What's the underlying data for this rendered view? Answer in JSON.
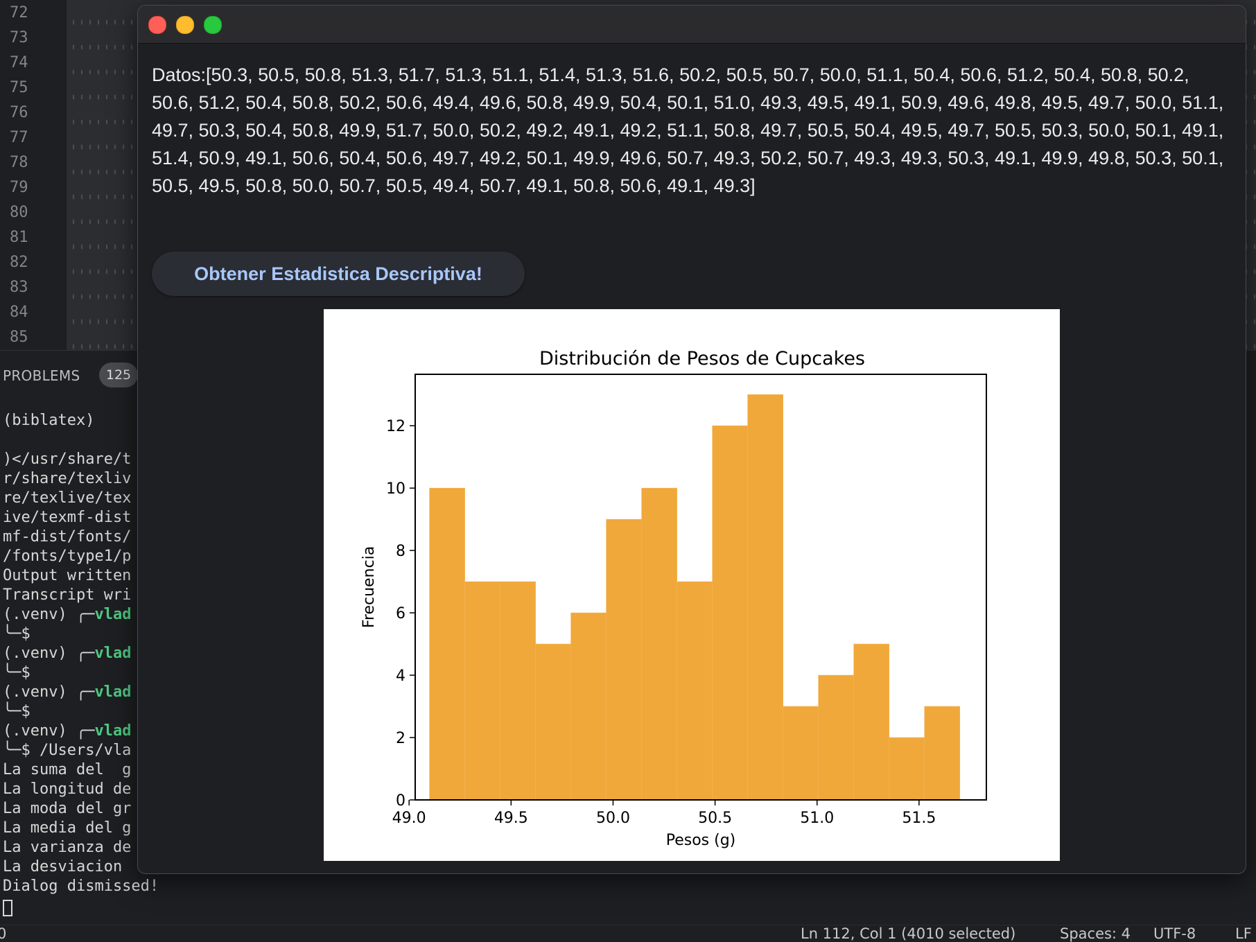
{
  "editor": {
    "line_numbers": [
      "72",
      "73",
      "74",
      "75",
      "76",
      "77",
      "78",
      "79",
      "80",
      "81",
      "82",
      "83",
      "84",
      "85"
    ]
  },
  "panel": {
    "problems_label": "PROBLEMS",
    "problems_count": "125"
  },
  "terminal": {
    "lines": [
      {
        "text": "(biblatex)"
      },
      {
        "text": ""
      },
      {
        "text": ")</usr/share/t"
      },
      {
        "text": "r/share/texliv"
      },
      {
        "text": "re/texlive/tex"
      },
      {
        "text": "ive/texmf-dist"
      },
      {
        "text": "mf-dist/fonts/"
      },
      {
        "text": "/fonts/type1/p"
      },
      {
        "text": "Output written"
      },
      {
        "text": "Transcript wri"
      },
      {
        "text": "(.venv) ╭─",
        "user": "vlad"
      },
      {
        "text": "╰─$"
      },
      {
        "text": "(.venv) ╭─",
        "user": "vlad"
      },
      {
        "text": "╰─$"
      },
      {
        "text": "(.venv) ╭─",
        "user": "vlad"
      },
      {
        "text": "╰─$"
      },
      {
        "text": "(.venv) ╭─",
        "user": "vlad"
      },
      {
        "text": "╰─$ /Users/vla"
      },
      {
        "text": "La suma del  g"
      },
      {
        "text": "La longitud de"
      },
      {
        "text": "La moda del gr"
      },
      {
        "text": "La media del g"
      },
      {
        "text": "La varianza de"
      },
      {
        "text": "La desviacion"
      },
      {
        "text": "Dialog dismissed!"
      }
    ]
  },
  "statusbar": {
    "left": "0",
    "position": "Ln 112, Col 1 (4010 selected)",
    "spaces": "Spaces: 4",
    "encoding": "UTF-8",
    "eol": "LF"
  },
  "dialog": {
    "data_text": "Datos:[50.3, 50.5, 50.8, 51.3, 51.7, 51.3, 51.1, 51.4, 51.3, 51.6, 50.2, 50.5, 50.7, 50.0, 51.1, 50.4, 50.6, 51.2, 50.4, 50.8, 50.2, 50.6, 51.2, 50.4, 50.8, 50.2, 50.6, 49.4, 49.6, 50.8, 49.9, 50.4, 50.1, 51.0, 49.3, 49.5, 49.1, 50.9, 49.6, 49.8, 49.5, 49.7, 50.0, 51.1, 49.7, 50.3, 50.4, 50.8, 49.9, 51.7, 50.0, 50.2, 49.2, 49.1, 49.2, 51.1, 50.8, 49.7, 50.5, 50.4, 49.5, 49.7, 50.5, 50.3, 50.0, 50.1, 49.1, 51.4, 50.9, 49.1, 50.6, 50.4, 50.6, 49.7, 49.2, 50.1, 49.9, 49.6, 50.7, 49.3, 50.2, 50.7, 49.3, 49.3, 50.3, 49.1, 49.9, 49.8, 50.3, 50.1, 50.5, 49.5, 50.8, 50.0, 50.7, 50.5, 49.4, 50.7, 49.1, 50.8, 50.6, 49.1, 49.3]",
    "button_label": "Obtener Estadistica Descriptiva!"
  },
  "chart_data": {
    "type": "bar",
    "title": "Distribución de Pesos de Cupcakes",
    "xlabel": "Pesos (g)",
    "ylabel": "Frecuencia",
    "bin_edges": [
      49.1,
      49.2733,
      49.4467,
      49.62,
      49.7933,
      49.9667,
      50.14,
      50.3133,
      50.4867,
      50.66,
      50.8333,
      51.0067,
      51.18,
      51.3533,
      51.5267,
      51.7
    ],
    "values": [
      10,
      7,
      7,
      5,
      6,
      9,
      10,
      7,
      12,
      13,
      3,
      4,
      5,
      2,
      3
    ],
    "xlim": [
      49.03,
      51.83
    ],
    "ylim": [
      0,
      13.65
    ],
    "xticks": [
      "49.0",
      "49.5",
      "50.0",
      "50.5",
      "51.0",
      "51.5"
    ],
    "yticks": [
      "0",
      "2",
      "4",
      "6",
      "8",
      "10",
      "12"
    ],
    "bar_color": "#f0a83a",
    "grid": false
  }
}
